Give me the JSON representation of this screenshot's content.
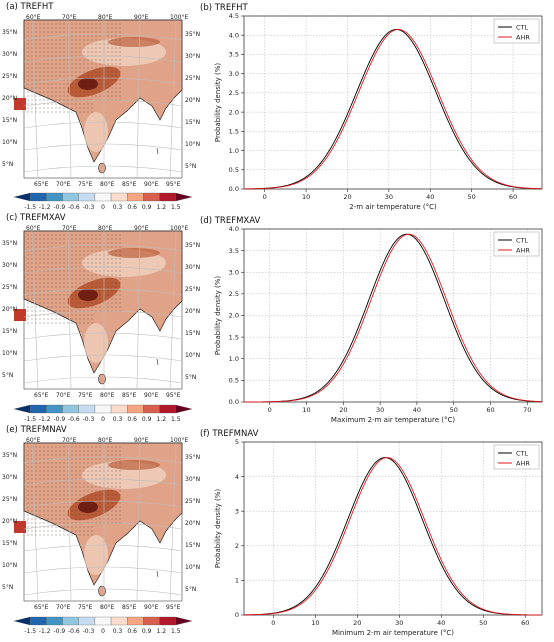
{
  "colors": {
    "ctl": "#000000",
    "ahr": "#e31a1c",
    "land_light": "#f2d4c4",
    "land_mid": "#e0a388",
    "land_dark": "#b4502a",
    "land_darkest": "#6b1a10",
    "grid": "#bdbdbd"
  },
  "colorbar": {
    "ticks": [
      "-1.5",
      "-1.2",
      "-0.9",
      "-0.6",
      "-0.3",
      "0",
      "0.3",
      "0.6",
      "0.9",
      "1.2",
      "1.5"
    ],
    "colors": [
      "#08306b",
      "#2166ac",
      "#4393c3",
      "#92c5de",
      "#c6dbef",
      "#f7f7f7",
      "#f9dccb",
      "#f4a582",
      "#d6604d",
      "#b2182b",
      "#67001f"
    ]
  },
  "maps": [
    {
      "title": "(a) TREFHT",
      "top_lon": [
        "60°E",
        "70°E",
        "80°E",
        "90°E",
        "100°E"
      ],
      "bottom_lon": [
        "65°E",
        "70°E",
        "75°E",
        "80°E",
        "85°E",
        "90°E",
        "95°E"
      ],
      "left_lat": [
        "35°N",
        "30°N",
        "25°N",
        "20°N",
        "15°N",
        "10°N",
        "5°N"
      ],
      "right_lat": [
        "35°N",
        "30°N",
        "25°N",
        "20°N",
        "15°N",
        "10°N",
        "5°N"
      ]
    },
    {
      "title": "(c) TREFMXAV",
      "top_lon": [
        "60°E",
        "70°E",
        "80°E",
        "90°E",
        "100°E"
      ],
      "bottom_lon": [
        "65°E",
        "70°E",
        "75°E",
        "80°E",
        "85°E",
        "90°E",
        "95°E"
      ],
      "left_lat": [
        "35°N",
        "30°N",
        "25°N",
        "20°N",
        "15°N",
        "10°N",
        "5°N"
      ],
      "right_lat": [
        "35°N",
        "30°N",
        "25°N",
        "20°N",
        "15°N",
        "10°N",
        "5°N"
      ]
    },
    {
      "title": "(e) TREFMNAV",
      "top_lon": [
        "60°E",
        "70°E",
        "80°E",
        "90°E",
        "100°E"
      ],
      "bottom_lon": [
        "65°E",
        "70°E",
        "75°E",
        "80°E",
        "85°E",
        "90°E",
        "95°E"
      ],
      "left_lat": [
        "35°N",
        "30°N",
        "25°N",
        "20°N",
        "15°N",
        "10°N",
        "5°N"
      ],
      "right_lat": [
        "35°N",
        "30°N",
        "25°N",
        "20°N",
        "15°N",
        "10°N",
        "5°N"
      ]
    }
  ],
  "chart_data": [
    {
      "type": "line",
      "title": "(b) TREFHT",
      "xlabel": "2-m air temperature (°C)",
      "ylabel": "Probability density (%)",
      "xlim": [
        -5,
        67
      ],
      "ylim": [
        0,
        4.5
      ],
      "xticks": [
        0,
        10,
        20,
        30,
        40,
        50,
        60
      ],
      "yticks": [
        0,
        0.5,
        1.0,
        1.5,
        2.0,
        2.5,
        3.0,
        3.5,
        4.0,
        4.5
      ],
      "ytick_labels": [
        "0.0",
        "0.5",
        "1.0",
        "1.5",
        "2.0",
        "2.5",
        "3.0",
        "3.5",
        "4.0",
        "4.5"
      ],
      "grid": true,
      "legend_position": "top-right",
      "series": [
        {
          "name": "CTL",
          "mean": 31.8,
          "sd": 9.6,
          "peak": 4.15
        },
        {
          "name": "AHR",
          "mean": 32.3,
          "sd": 9.6,
          "peak": 4.15
        }
      ]
    },
    {
      "type": "line",
      "title": "(d) TREFMXAV",
      "xlabel": "Maximum 2-m air temperature (°C)",
      "ylabel": "Probability density (%)",
      "xlim": [
        -7,
        74
      ],
      "ylim": [
        0,
        4.0
      ],
      "xticks": [
        0,
        10,
        20,
        30,
        40,
        50,
        60,
        70
      ],
      "yticks": [
        0,
        0.5,
        1.0,
        1.5,
        2.0,
        2.5,
        3.0,
        3.5,
        4.0
      ],
      "ytick_labels": [
        "0.0",
        "0.5",
        "1.0",
        "1.5",
        "2.0",
        "2.5",
        "3.0",
        "3.5",
        "4.0"
      ],
      "grid": true,
      "legend_position": "top-right",
      "series": [
        {
          "name": "CTL",
          "mean": 37.2,
          "sd": 10.3,
          "peak": 3.88
        },
        {
          "name": "AHR",
          "mean": 37.8,
          "sd": 10.3,
          "peak": 3.88
        }
      ]
    },
    {
      "type": "line",
      "title": "(f) TREFMNAV",
      "xlabel": "Minimum 2-m air temperature (°C)",
      "ylabel": "Probability density (%)",
      "xlim": [
        -7,
        64
      ],
      "ylim": [
        0,
        5
      ],
      "xticks": [
        0,
        10,
        20,
        30,
        40,
        50,
        60
      ],
      "yticks": [
        0,
        1,
        2,
        3,
        4,
        5
      ],
      "ytick_labels": [
        "0",
        "1",
        "2",
        "3",
        "4",
        "5"
      ],
      "grid": true,
      "legend_position": "top-right",
      "series": [
        {
          "name": "CTL",
          "mean": 26.6,
          "sd": 8.9,
          "peak": 4.55
        },
        {
          "name": "AHR",
          "mean": 27.1,
          "sd": 8.9,
          "peak": 4.55
        }
      ]
    }
  ]
}
